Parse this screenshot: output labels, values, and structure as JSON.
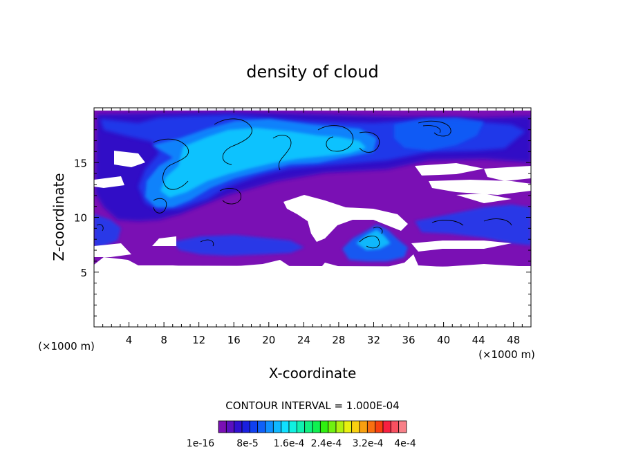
{
  "chart_data": {
    "type": "heatmap",
    "title": "density of cloud",
    "xlabel": "X-coordinate",
    "ylabel": "Z-coordinate",
    "x_unit": "(×1000 m)",
    "z_unit": "(×1000 m)",
    "xlim": [
      0,
      50
    ],
    "ylim": [
      0,
      20
    ],
    "x_ticks": [
      4,
      8,
      12,
      16,
      20,
      24,
      28,
      32,
      36,
      40,
      44,
      48
    ],
    "y_ticks": [
      5,
      10,
      15
    ],
    "contour_interval_text": "CONTOUR INTERVAL = 1.000E-04",
    "colorbar": {
      "colors": [
        "#7a10b4",
        "#5a10c0",
        "#3010d0",
        "#1a20e0",
        "#1040f0",
        "#1060f8",
        "#1090ff",
        "#10b8ff",
        "#10e0ff",
        "#10f0e0",
        "#10f0b0",
        "#10f080",
        "#10f050",
        "#30f010",
        "#70f010",
        "#b0f010",
        "#e8f010",
        "#f8d010",
        "#f8a010",
        "#f87010",
        "#f84010",
        "#f82040",
        "#f85060",
        "#f88088"
      ],
      "labels": [
        "1e-16",
        "8e-5",
        "1.6e-4",
        "2.4e-4",
        "3.2e-4",
        "4e-4"
      ]
    },
    "cloud_regions": [
      {
        "x": [
          0,
          50
        ],
        "z": [
          5.8,
          19.5
        ],
        "level": 0,
        "note": "band"
      }
    ]
  }
}
